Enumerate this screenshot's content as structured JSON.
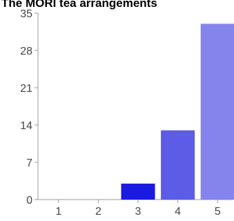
{
  "chart_data": {
    "type": "bar",
    "title": "The MORI tea arrangements",
    "categories": [
      "1",
      "2",
      "3",
      "4",
      "5"
    ],
    "values": [
      0,
      0,
      3,
      13,
      33
    ],
    "yticks": [
      0,
      7,
      14,
      21,
      28,
      35
    ],
    "ylim": [
      0,
      35
    ],
    "xlabel": "",
    "ylabel": "",
    "grid": false,
    "legend": "none",
    "bar_colors": [
      "#1a1ae0",
      "#1a1ae0",
      "#1a1ae0",
      "#5c5ce6",
      "#8484ec"
    ],
    "axis_color": "#999999"
  }
}
